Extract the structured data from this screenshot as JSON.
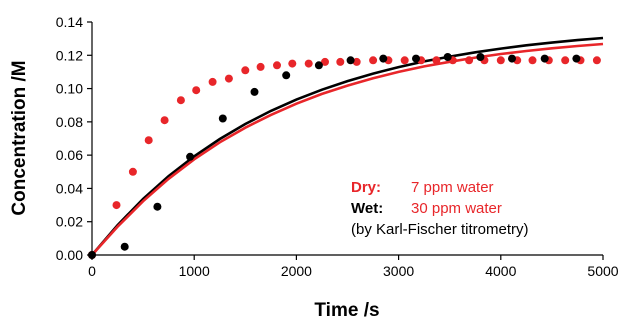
{
  "chart_data": {
    "type": "scatter",
    "title": "",
    "xlabel": "Time /s",
    "ylabel": "Concentration /M",
    "xlim": [
      0,
      5000
    ],
    "ylim": [
      0,
      0.14
    ],
    "x_ticks": [
      0,
      1000,
      2000,
      3000,
      4000,
      5000
    ],
    "y_ticks": [
      0.0,
      0.02,
      0.04,
      0.06,
      0.08,
      0.1,
      0.12,
      0.14
    ],
    "x_tick_labels": [
      "0",
      "1000",
      "2000",
      "3000",
      "4000",
      "5000"
    ],
    "y_tick_labels": [
      "0.00",
      "0.02",
      "0.04",
      "0.06",
      "0.08",
      "0.10",
      "0.12",
      "0.14"
    ],
    "grid": false,
    "colors": {
      "dry": "#e8262a",
      "wet": "#000000"
    },
    "series": [
      {
        "kind": "points",
        "color_key": "dry",
        "points": [
          [
            0,
            0.0
          ],
          [
            240,
            0.03
          ],
          [
            400,
            0.05
          ],
          [
            555,
            0.069
          ],
          [
            710,
            0.081
          ],
          [
            870,
            0.093
          ],
          [
            1020,
            0.099
          ],
          [
            1180,
            0.104
          ],
          [
            1340,
            0.106
          ],
          [
            1500,
            0.111
          ],
          [
            1650,
            0.113
          ],
          [
            1810,
            0.114
          ],
          [
            1960,
            0.115
          ],
          [
            2120,
            0.115
          ],
          [
            2280,
            0.116
          ],
          [
            2430,
            0.116
          ],
          [
            2590,
            0.116
          ],
          [
            2750,
            0.117
          ],
          [
            2900,
            0.117
          ],
          [
            3060,
            0.117
          ],
          [
            3220,
            0.117
          ],
          [
            3370,
            0.117
          ],
          [
            3530,
            0.117
          ],
          [
            3690,
            0.117
          ],
          [
            3840,
            0.117
          ],
          [
            4000,
            0.117
          ],
          [
            4160,
            0.117
          ],
          [
            4310,
            0.117
          ],
          [
            4470,
            0.117
          ],
          [
            4630,
            0.117
          ],
          [
            4780,
            0.117
          ],
          [
            4940,
            0.117
          ]
        ]
      },
      {
        "kind": "points",
        "color_key": "wet",
        "points": [
          [
            0,
            0.0
          ],
          [
            320,
            0.005
          ],
          [
            640,
            0.029
          ],
          [
            960,
            0.059
          ],
          [
            1280,
            0.082
          ],
          [
            1590,
            0.098
          ],
          [
            1900,
            0.108
          ],
          [
            2220,
            0.114
          ],
          [
            2530,
            0.117
          ],
          [
            2850,
            0.118
          ],
          [
            3170,
            0.118
          ],
          [
            3480,
            0.119
          ],
          [
            3800,
            0.119
          ],
          [
            4110,
            0.118
          ],
          [
            4430,
            0.118
          ],
          [
            4740,
            0.118
          ]
        ]
      },
      {
        "kind": "line",
        "color_key": "wet",
        "x": [
          0,
          250,
          500,
          750,
          1000,
          1250,
          1500,
          1750,
          2000,
          2250,
          2500,
          2750,
          3000,
          3250,
          3500,
          3750,
          4000,
          4250,
          4500,
          4750,
          5000
        ],
        "values": [
          0,
          0.0179,
          0.0337,
          0.0474,
          0.0593,
          0.0697,
          0.0787,
          0.0866,
          0.0934,
          0.0993,
          0.1045,
          0.109,
          0.1129,
          0.1163,
          0.1192,
          0.1218,
          0.124,
          0.126,
          0.1276,
          0.1291,
          0.1304
        ]
      },
      {
        "kind": "line",
        "color_key": "dry",
        "x": [
          0,
          250,
          500,
          750,
          1000,
          1250,
          1500,
          1750,
          2000,
          2250,
          2500,
          2750,
          3000,
          3250,
          3500,
          3750,
          4000,
          4250,
          4500,
          4750,
          5000
        ],
        "values": [
          0,
          0.017,
          0.0323,
          0.0458,
          0.0575,
          0.0677,
          0.0765,
          0.0842,
          0.0909,
          0.0968,
          0.1018,
          0.1062,
          0.11,
          0.1133,
          0.1161,
          0.1186,
          0.1208,
          0.1226,
          0.1242,
          0.1256,
          0.1268
        ]
      }
    ],
    "annotations": {
      "dry_label": "Dry:",
      "dry_value": "7 ppm water",
      "wet_label": "Wet:",
      "wet_value": "30 ppm water",
      "note": "(by Karl-Fischer titrometry)"
    }
  }
}
